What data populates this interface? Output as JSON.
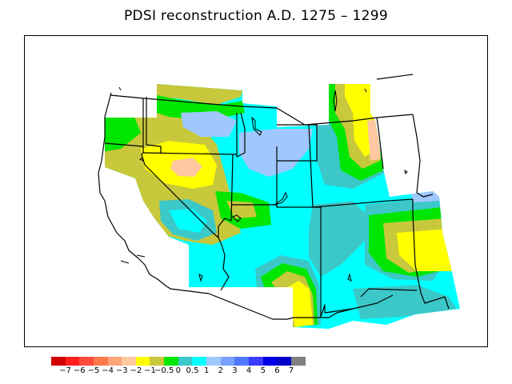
{
  "title": "PDSI reconstruction A.D. 1275 – 1299",
  "legend": {
    "colors": [
      "#d20000",
      "#ff1f1f",
      "#ff4a3d",
      "#ff7a4a",
      "#ffa57a",
      "#ffc8a0",
      "#ffff00",
      "#c8c83c",
      "#00e600",
      "#3cc8c8",
      "#00ffff",
      "#a0c8ff",
      "#78a0ff",
      "#5078ff",
      "#3c3cff",
      "#0000e6",
      "#0000c8",
      "#808080"
    ],
    "labels": [
      "−7",
      "−6",
      "−5",
      "−4",
      "−3",
      "−2",
      "−1",
      "−0.5",
      "0",
      "0.5",
      "1",
      "2",
      "3",
      "4",
      "5",
      "6",
      "7"
    ]
  },
  "palette": {
    "c_n1": "#ffff00",
    "c_n05": "#c8c83c",
    "c_0": "#00e600",
    "c_05": "#3cc8c8",
    "c_1": "#00ffff",
    "c_2": "#a0c8ff",
    "c_n2": "#ffc8a0"
  }
}
